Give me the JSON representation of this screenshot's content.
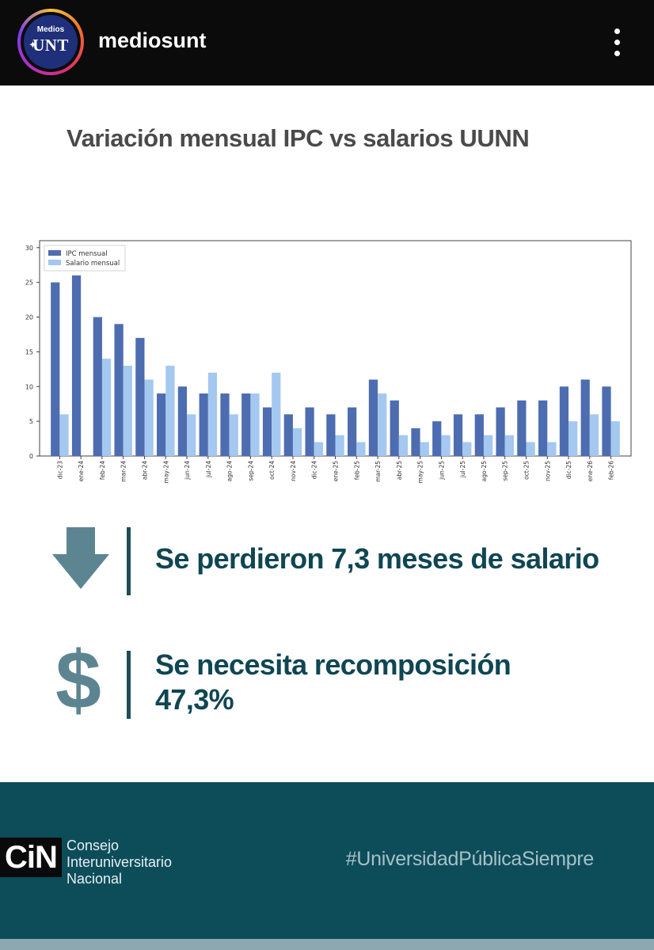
{
  "header": {
    "avatar_small": "Medios",
    "avatar_big": "UNT",
    "username": "mediosunt",
    "more_icon": "more-vertical-icon"
  },
  "post": {
    "title": "Variación mensual IPC vs salarios UUNN",
    "statement_1": "Se perdieron 7,3 meses de salario",
    "statement_2_line1": "Se necesita recomposición",
    "statement_2_line2": "47,3%",
    "icons": [
      "arrow-down-icon",
      "dollar-icon"
    ],
    "colors": {
      "accent_text": "#0f4653",
      "icon": "#5d8591",
      "footer_bg": "#0d4d5a"
    }
  },
  "footer": {
    "logo_text": "CiN",
    "org_line1": "Consejo",
    "org_line2": "Interuniversitario",
    "org_line3": "Nacional",
    "hashtag": "#UniversidadPúblicaSiempre"
  },
  "chart_data": {
    "type": "bar",
    "categories": [
      "dic-23",
      "ene-24",
      "feb-24",
      "mar-24",
      "abr-24",
      "may-24",
      "jun-24",
      "jul-24",
      "ago-24",
      "sep-24",
      "oct-24",
      "nov-24",
      "dic-24",
      "ene-25",
      "feb-25",
      "mar-25",
      "abr-25",
      "may-25",
      "jun-25",
      "jul-25",
      "ago-25",
      "sep-25",
      "oct-25",
      "nov-25",
      "dic-25",
      "ene-26",
      "feb-26"
    ],
    "series": [
      {
        "name": "IPC mensual",
        "color": "#4d6db0",
        "values": [
          25,
          26,
          20,
          19,
          17,
          9,
          10,
          9,
          9,
          9,
          7,
          6,
          7,
          6,
          7,
          11,
          8,
          4,
          5,
          6,
          6,
          7,
          8,
          8,
          10,
          11,
          10
        ]
      },
      {
        "name": "Salario mensual",
        "color": "#a4c8ef",
        "values": [
          6,
          0,
          14,
          13,
          11,
          13,
          6,
          12,
          6,
          9,
          12,
          4,
          2,
          3,
          2,
          9,
          3,
          2,
          3,
          2,
          3,
          3,
          2,
          2,
          5,
          6,
          5
        ]
      }
    ],
    "yticks": [
      0,
      5,
      10,
      15,
      20,
      25,
      30
    ],
    "ylim": [
      0,
      31
    ],
    "legend": "top-left",
    "grid": false
  }
}
